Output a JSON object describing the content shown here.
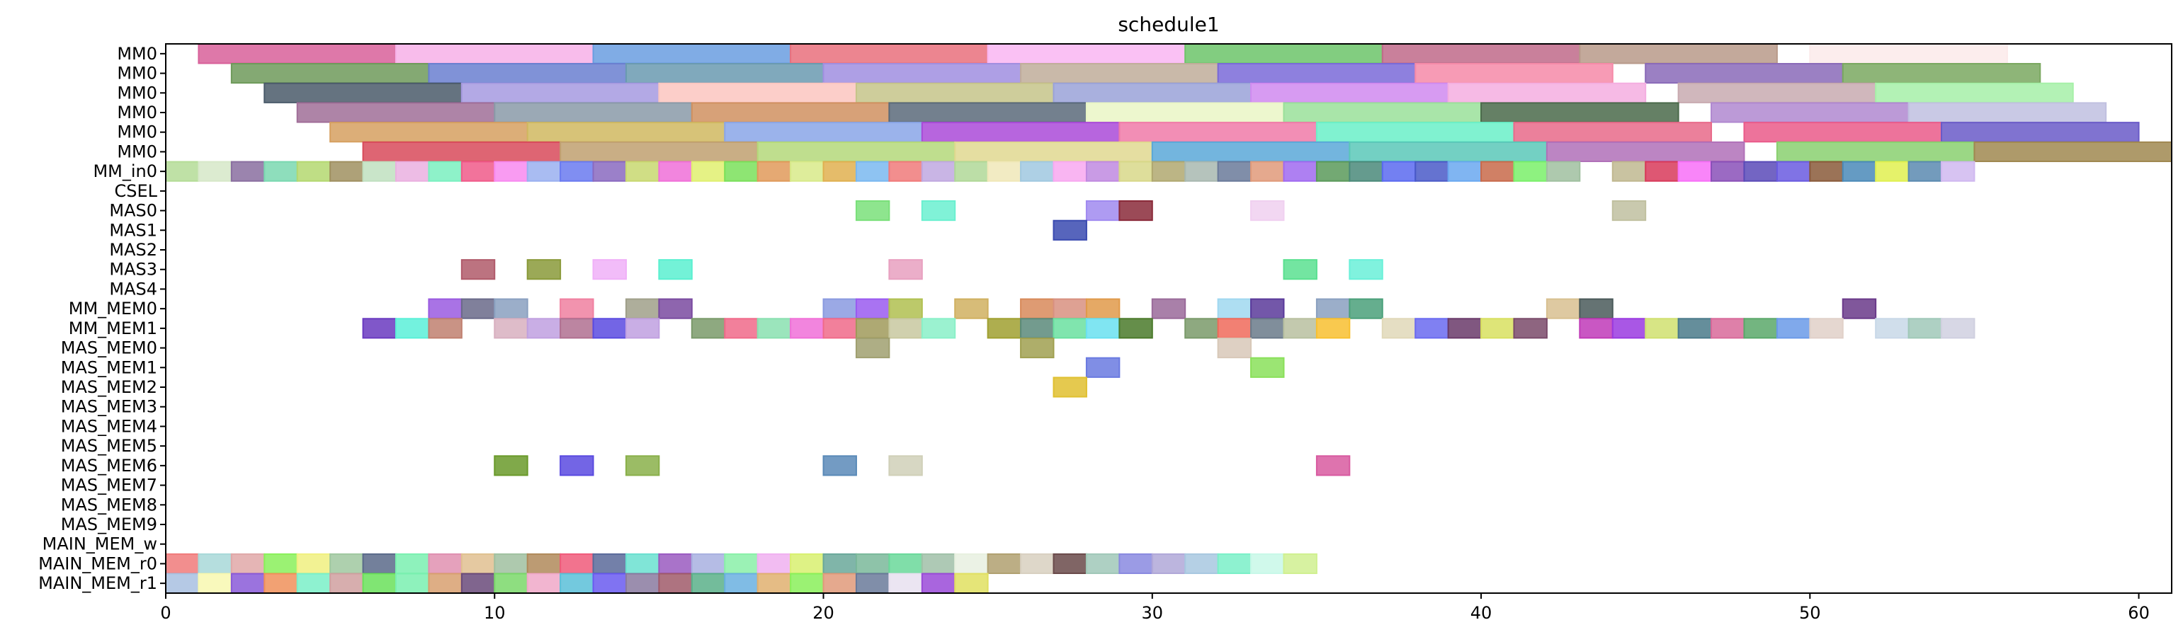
{
  "chart_data": {
    "type": "gantt",
    "title": "schedule1",
    "xlim": [
      0,
      61
    ],
    "x_ticks": [
      0,
      10,
      20,
      30,
      40,
      50,
      60
    ],
    "rows": [
      "MM0",
      "MM0",
      "MM0",
      "MM0",
      "MM0",
      "MM0",
      "MM_in0",
      "CSEL",
      "MAS0",
      "MAS1",
      "MAS2",
      "MAS3",
      "MAS4",
      "MM_MEM0",
      "MM_MEM1",
      "MAS_MEM0",
      "MAS_MEM1",
      "MAS_MEM2",
      "MAS_MEM3",
      "MAS_MEM4",
      "MAS_MEM5",
      "MAS_MEM6",
      "MAS_MEM7",
      "MAS_MEM8",
      "MAS_MEM9",
      "MAIN_MEM_w",
      "MAIN_MEM_r0",
      "MAIN_MEM_r1"
    ],
    "tasks": {
      "0": [
        [
          1,
          7,
          "#d8609a"
        ],
        [
          7,
          13,
          "#f7b0e8"
        ],
        [
          13,
          19,
          "#6a9de0"
        ],
        [
          19,
          25,
          "#e9707c"
        ],
        [
          25,
          31,
          "#f9b6f2"
        ],
        [
          31,
          37,
          "#6cc46a"
        ],
        [
          37,
          43,
          "#c06a8a"
        ],
        [
          43,
          49,
          "#b89a8a"
        ],
        [
          50,
          56,
          "#fbeaea"
        ]
      ],
      "1": [
        [
          2,
          8,
          "#6e9a5a"
        ],
        [
          8,
          14,
          "#6a7fd0"
        ],
        [
          14,
          20,
          "#6a9ab0"
        ],
        [
          20,
          26,
          "#a08ee0"
        ],
        [
          26,
          32,
          "#c0ad9a"
        ],
        [
          32,
          38,
          "#7a6ad8"
        ],
        [
          38,
          44,
          "#f68aa8"
        ],
        [
          45,
          51,
          "#8a6ab8"
        ],
        [
          51,
          57,
          "#7aa860"
        ]
      ],
      "2": [
        [
          3,
          9,
          "#4a5a6a"
        ],
        [
          9,
          15,
          "#a69ae0"
        ],
        [
          15,
          21,
          "#fbc6c0"
        ],
        [
          21,
          27,
          "#c6c48a"
        ],
        [
          27,
          33,
          "#9aa2d8"
        ],
        [
          33,
          39,
          "#d08af0"
        ],
        [
          39,
          45,
          "#f4aee0"
        ],
        [
          46,
          52,
          "#c8aab0"
        ],
        [
          52,
          58,
          "#a6f0a8"
        ]
      ],
      "3": [
        [
          4,
          10,
          "#a06e98"
        ],
        [
          10,
          16,
          "#8a9aa8"
        ],
        [
          16,
          22,
          "#d09060"
        ],
        [
          22,
          28,
          "#5a6a7a"
        ],
        [
          28,
          34,
          "#eaf6c6"
        ],
        [
          34,
          40,
          "#9ae09a"
        ],
        [
          40,
          46,
          "#4a6a4a"
        ],
        [
          47,
          53,
          "#b088d0"
        ],
        [
          53,
          59,
          "#c0c0e0"
        ]
      ],
      "4": [
        [
          5,
          11,
          "#d6a060"
        ],
        [
          11,
          17,
          "#d0b860"
        ],
        [
          17,
          23,
          "#8aa6e8"
        ],
        [
          23,
          29,
          "#aa4ad8"
        ],
        [
          29,
          35,
          "#f07aa8"
        ],
        [
          35,
          41,
          "#6af0c8"
        ],
        [
          41,
          47,
          "#e86a8a"
        ],
        [
          48,
          54,
          "#ea5a8a"
        ],
        [
          54,
          60,
          "#6a5ac8"
        ]
      ],
      "5": [
        [
          6,
          12,
          "#d84a5a"
        ],
        [
          12,
          18,
          "#c0a070"
        ],
        [
          18,
          24,
          "#b4d87a"
        ],
        [
          24,
          30,
          "#e0d890"
        ],
        [
          30,
          36,
          "#5aa8d8"
        ],
        [
          36,
          42,
          "#5ac8b8"
        ],
        [
          42,
          48,
          "#b070b8"
        ],
        [
          49,
          55,
          "#8ad070"
        ],
        [
          55,
          61.5,
          "#a08850"
        ]
      ],
      "6": [
        [
          0,
          1,
          "#b4dc96"
        ],
        [
          1,
          2,
          "#d6e8c8"
        ],
        [
          2,
          3,
          "#8a6ea0"
        ],
        [
          3,
          4,
          "#7ad8b0"
        ],
        [
          4,
          5,
          "#b4d870"
        ],
        [
          5,
          6,
          "#a09060"
        ],
        [
          6,
          7,
          "#c0e0c0"
        ],
        [
          7,
          8,
          "#eab0e0"
        ],
        [
          8,
          9,
          "#7af0c0"
        ],
        [
          9,
          10,
          "#f05a8a"
        ],
        [
          10,
          11,
          "#f88af0"
        ],
        [
          11,
          12,
          "#9ab0f0"
        ],
        [
          12,
          13,
          "#6a7af0"
        ],
        [
          13,
          14,
          "#8a6ac0"
        ],
        [
          14,
          15,
          "#c8d870"
        ],
        [
          15,
          16,
          "#f070d8"
        ],
        [
          16,
          17,
          "#e0f070"
        ],
        [
          17,
          18,
          "#7ae05a"
        ],
        [
          18,
          19,
          "#e09a5a"
        ],
        [
          19,
          20,
          "#d8ea8a"
        ],
        [
          20,
          21,
          "#e0b050"
        ],
        [
          21,
          22,
          "#7ab8f0"
        ],
        [
          22,
          23,
          "#f07a7a"
        ],
        [
          23,
          24,
          "#c0a8e0"
        ],
        [
          24,
          25,
          "#b0d898"
        ],
        [
          25,
          26,
          "#f0e8b8"
        ],
        [
          26,
          27,
          "#a0c8e0"
        ],
        [
          27,
          28,
          "#f8a8f0"
        ],
        [
          28,
          29,
          "#c08ae0"
        ],
        [
          29,
          30,
          "#d8d88a"
        ],
        [
          30,
          31,
          "#b0a870"
        ],
        [
          31,
          32,
          "#a8b8b0"
        ],
        [
          32,
          33,
          "#6a7a9a"
        ],
        [
          33,
          34,
          "#e09a7a"
        ],
        [
          34,
          35,
          "#a06af0"
        ],
        [
          35,
          36,
          "#5a9a5a"
        ],
        [
          36,
          37,
          "#4a8a7a"
        ],
        [
          37,
          38,
          "#5a6af0"
        ],
        [
          38,
          39,
          "#4a5ac8"
        ],
        [
          39,
          40,
          "#6aa8f0"
        ],
        [
          40,
          41,
          "#c86a4a"
        ],
        [
          41,
          42,
          "#7af06a"
        ],
        [
          42,
          43,
          "#a0c0a0"
        ],
        [
          44,
          45,
          "#c0b890"
        ],
        [
          45,
          46,
          "#d83a5a"
        ],
        [
          46,
          47,
          "#f870f8"
        ],
        [
          47,
          48,
          "#8a50b8"
        ],
        [
          48,
          49,
          "#5a4ab8"
        ],
        [
          49,
          50,
          "#6a5ae0"
        ],
        [
          50,
          51,
          "#8a5a3a"
        ],
        [
          51,
          52,
          "#4a8ab8"
        ],
        [
          52,
          53,
          "#e0f050"
        ],
        [
          53,
          54,
          "#5a8ab0"
        ],
        [
          54,
          55,
          "#d0b8f0"
        ]
      ],
      "8": [
        [
          21,
          22,
          "#7ae07a"
        ],
        [
          23,
          24,
          "#6af0d0"
        ],
        [
          28,
          29,
          "#a08af0"
        ],
        [
          29,
          30,
          "#8a2a3a"
        ],
        [
          33,
          34,
          "#f0d0f0"
        ],
        [
          44,
          45,
          "#c0c0a0"
        ]
      ],
      "9": [
        [
          27,
          28,
          "#3a4ab0"
        ]
      ],
      "11": [
        [
          9,
          10,
          "#b05a6a"
        ],
        [
          11,
          12,
          "#8a9a3a"
        ],
        [
          13,
          14,
          "#f0b0f8"
        ],
        [
          15,
          16,
          "#5af0d0"
        ],
        [
          22,
          23,
          "#e8a0c0"
        ],
        [
          34,
          35,
          "#5ae090"
        ],
        [
          36,
          37,
          "#6af0d8"
        ]
      ],
      "13": [
        [
          8,
          9,
          "#9a5ae0"
        ],
        [
          9,
          10,
          "#6a6a8a"
        ],
        [
          10,
          11,
          "#8aa0c0"
        ],
        [
          12,
          13,
          "#f080a0"
        ],
        [
          14,
          15,
          "#a0a08a"
        ],
        [
          15,
          16,
          "#7a4aa0"
        ],
        [
          20,
          21,
          "#8a9ae0"
        ],
        [
          21,
          22,
          "#9a5af0"
        ],
        [
          22,
          23,
          "#b0c050"
        ],
        [
          24,
          25,
          "#d0b060"
        ],
        [
          26,
          27,
          "#d88a5a"
        ],
        [
          27,
          28,
          "#d89080"
        ],
        [
          28,
          29,
          "#e09a4a"
        ],
        [
          30,
          31,
          "#9a6a9a"
        ],
        [
          32,
          33,
          "#a0d8f0"
        ],
        [
          33,
          34,
          "#5a3a9a"
        ],
        [
          35,
          36,
          "#8aa0c0"
        ],
        [
          36,
          37,
          "#4aa07a"
        ],
        [
          42,
          43,
          "#d8c090"
        ],
        [
          43,
          44,
          "#4a5a5a"
        ],
        [
          51,
          52,
          "#6a3a8a"
        ]
      ],
      "14": [
        [
          6,
          7,
          "#6a3ac0"
        ],
        [
          7,
          8,
          "#5af0d8"
        ],
        [
          8,
          9,
          "#c08070"
        ],
        [
          10,
          11,
          "#d8b0c0"
        ],
        [
          11,
          12,
          "#c0a0e0"
        ],
        [
          12,
          13,
          "#b07090"
        ],
        [
          13,
          14,
          "#5a4ae0"
        ],
        [
          14,
          15,
          "#c0a0e0"
        ],
        [
          16,
          17,
          "#7a9a6a"
        ],
        [
          17,
          18,
          "#f06a8a"
        ],
        [
          18,
          19,
          "#8ae0b0"
        ],
        [
          19,
          20,
          "#f070d8"
        ],
        [
          20,
          21,
          "#f06a8a"
        ],
        [
          21,
          22,
          "#a09a5a"
        ],
        [
          22,
          23,
          "#c8c8a0"
        ],
        [
          23,
          24,
          "#8af0c8"
        ],
        [
          25,
          26,
          "#a0a030"
        ],
        [
          26,
          27,
          "#5a8a7a"
        ],
        [
          27,
          28,
          "#6ae0a0"
        ],
        [
          28,
          29,
          "#6ae0f0"
        ],
        [
          29,
          30,
          "#4a7a2a"
        ],
        [
          31,
          32,
          "#7a9a6a"
        ],
        [
          32,
          33,
          "#f06a5a"
        ],
        [
          33,
          34,
          "#6a7a8a"
        ],
        [
          34,
          35,
          "#b8c0a0"
        ],
        [
          35,
          36,
          "#f8c030"
        ],
        [
          37,
          38,
          "#e0d8b8"
        ],
        [
          38,
          39,
          "#6a6af0"
        ],
        [
          39,
          40,
          "#6a3a6a"
        ],
        [
          40,
          41,
          "#d8e060"
        ],
        [
          41,
          42,
          "#7a4a6a"
        ],
        [
          43,
          44,
          "#c03ab8"
        ],
        [
          44,
          45,
          "#9a3ae0"
        ],
        [
          45,
          46,
          "#d0e070"
        ],
        [
          46,
          47,
          "#4a7a8a"
        ],
        [
          47,
          48,
          "#d86a9a"
        ],
        [
          48,
          49,
          "#5aa86a"
        ],
        [
          49,
          50,
          "#6a9ae8"
        ],
        [
          50,
          51,
          "#e0d0c8"
        ],
        [
          52,
          53,
          "#c8d8e8"
        ],
        [
          53,
          54,
          "#a0c8b8"
        ],
        [
          54,
          55,
          "#d0d0e0"
        ]
      ],
      "15": [
        [
          21,
          22,
          "#a0a070"
        ],
        [
          26,
          27,
          "#a0a050"
        ],
        [
          32,
          33,
          "#d8c8b8"
        ]
      ],
      "16": [
        [
          28,
          29,
          "#6a7ae0"
        ],
        [
          33,
          34,
          "#8ae05a"
        ]
      ],
      "17": [
        [
          27,
          28,
          "#e0c030"
        ]
      ],
      "21": [
        [
          10,
          11,
          "#6a9a2a"
        ],
        [
          12,
          13,
          "#5a4ae0"
        ],
        [
          14,
          15,
          "#8ab04a"
        ],
        [
          20,
          21,
          "#5a8ab8"
        ],
        [
          22,
          23,
          "#d0d0b8"
        ],
        [
          35,
          36,
          "#d85aa0"
        ]
      ],
      "26": [
        [
          0,
          1,
          "#f07a7a"
        ],
        [
          1,
          2,
          "#a8d8d8"
        ],
        [
          2,
          3,
          "#e0a8a8"
        ],
        [
          3,
          4,
          "#8af05a"
        ],
        [
          4,
          5,
          "#f0f080"
        ],
        [
          5,
          6,
          "#a0c8a0"
        ],
        [
          6,
          7,
          "#5a6a8a"
        ],
        [
          7,
          8,
          "#7af0b0"
        ],
        [
          8,
          9,
          "#e090b0"
        ],
        [
          9,
          10,
          "#e0c090"
        ],
        [
          10,
          11,
          "#a0c0a0"
        ],
        [
          11,
          12,
          "#b08a5a"
        ],
        [
          12,
          13,
          "#f05a7a"
        ],
        [
          13,
          14,
          "#5a6a9a"
        ],
        [
          14,
          15,
          "#6ae0d0"
        ],
        [
          15,
          16,
          "#9a5ac0"
        ],
        [
          16,
          17,
          "#a8b0e0"
        ],
        [
          17,
          18,
          "#8af0a8"
        ],
        [
          18,
          19,
          "#f0b0f0"
        ],
        [
          19,
          20,
          "#d8f070"
        ],
        [
          20,
          21,
          "#6aa89a"
        ],
        [
          21,
          22,
          "#7ab89a"
        ],
        [
          22,
          23,
          "#6ad89a"
        ],
        [
          23,
          24,
          "#a0c0a8"
        ],
        [
          24,
          25,
          "#e8f0e0"
        ],
        [
          25,
          26,
          "#b0a070"
        ],
        [
          26,
          27,
          "#d8d0c0"
        ],
        [
          27,
          28,
          "#6a4a4a"
        ],
        [
          28,
          29,
          "#a0c8b8"
        ],
        [
          29,
          30,
          "#8a8ae0"
        ],
        [
          30,
          31,
          "#b0a8d8"
        ],
        [
          31,
          32,
          "#a8c8e0"
        ],
        [
          32,
          33,
          "#7af0c8"
        ],
        [
          33,
          34,
          "#c8f8e8"
        ],
        [
          34,
          35,
          "#d0f090"
        ]
      ],
      "27": [
        [
          0,
          1,
          "#a8c0e0"
        ],
        [
          1,
          2,
          "#f8f8b0"
        ],
        [
          2,
          3,
          "#8a5ad8"
        ],
        [
          3,
          4,
          "#f0905a"
        ],
        [
          4,
          5,
          "#7af0c8"
        ],
        [
          5,
          6,
          "#d0a0a0"
        ],
        [
          6,
          7,
          "#6ae05a"
        ],
        [
          7,
          8,
          "#7af0b0"
        ],
        [
          8,
          9,
          "#d8a070"
        ],
        [
          9,
          10,
          "#6a4a7a"
        ],
        [
          10,
          11,
          "#7ad86a"
        ],
        [
          11,
          12,
          "#f0a8c8"
        ],
        [
          12,
          13,
          "#5ac0d8"
        ],
        [
          13,
          14,
          "#6a5af0"
        ],
        [
          14,
          15,
          "#8a7aa0"
        ],
        [
          15,
          16,
          "#a05a6a"
        ],
        [
          16,
          17,
          "#5ab08a"
        ],
        [
          17,
          18,
          "#6ab0e0"
        ],
        [
          18,
          19,
          "#e0b070"
        ],
        [
          19,
          20,
          "#8af05a"
        ],
        [
          20,
          21,
          "#e09a7a"
        ],
        [
          21,
          22,
          "#6a7a9a"
        ],
        [
          22,
          23,
          "#e8e0f0"
        ],
        [
          23,
          24,
          "#9a4ad8"
        ],
        [
          24,
          25,
          "#e0e060"
        ]
      ]
    }
  }
}
